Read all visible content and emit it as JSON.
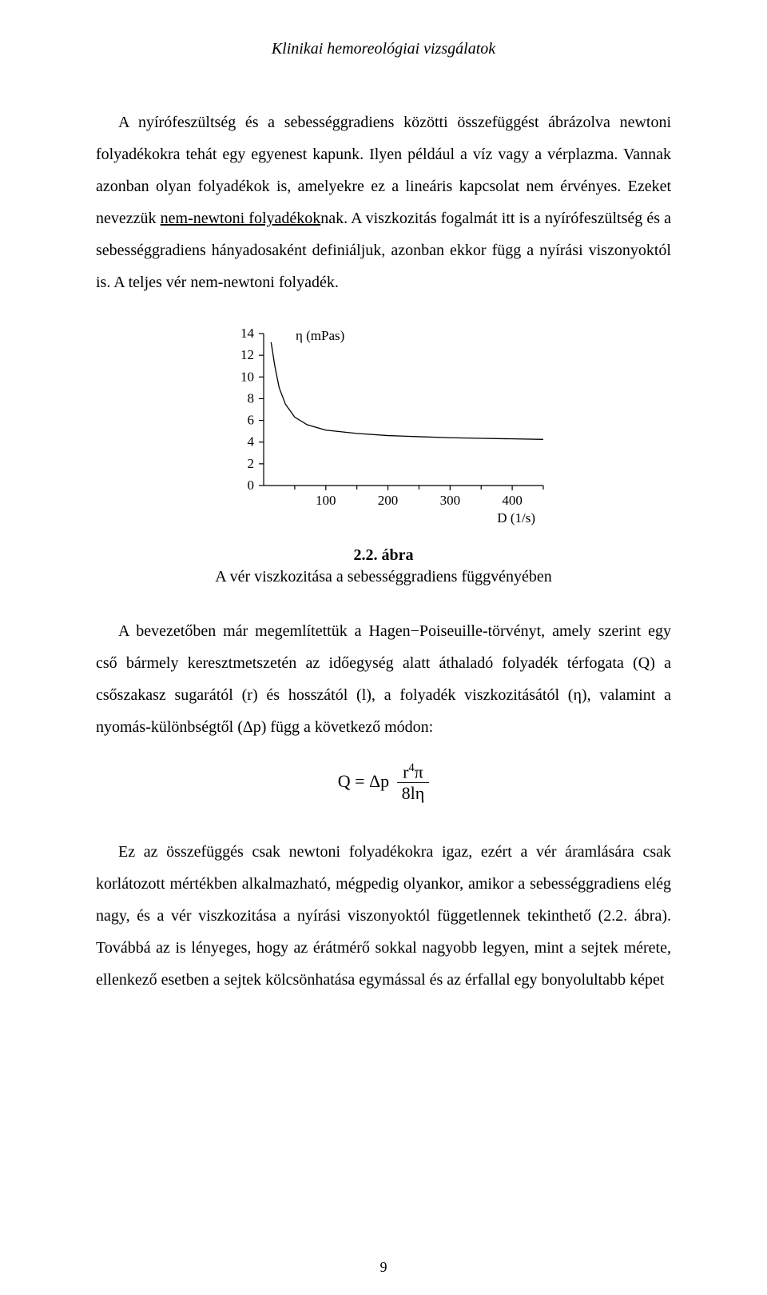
{
  "header": {
    "title": "Klinikai hemoreológiai vizsgálatok"
  },
  "paragraphs": {
    "p1_a": "A nyírófeszültség és a sebességgradiens közötti összefüggést ábrázolva newtoni folyadékokra tehát egy egyenest kapunk. Ilyen például a víz vagy a vérplazma. Vannak azonban olyan folyadékok is, amelyekre ez a lineáris kapcsolat nem érvényes. Ezeket nevezzük ",
    "p1_u": "nem-newtoni folyadékok",
    "p1_b": "nak. A viszkozitás fogalmát itt is a nyírófeszültség és a sebességgradiens hányadosaként definiáljuk, azonban ekkor függ a nyírási viszonyoktól is. A teljes vér nem-newtoni folyadék.",
    "p2": "A bevezetőben már megemlítettük a Hagen−Poiseuille-törvényt, amely szerint egy cső bármely keresztmetszetén az időegység alatt áthaladó folyadék térfogata (Q) a csőszakasz sugarától (r) és hosszától (l), a folyadék viszkozitásától (η), valamint a nyomás-különbségtől (Δp) függ a következő módon:",
    "p3": "Ez az összefüggés csak newtoni folyadékokra igaz, ezért a vér áramlására csak korlátozott mértékben alkalmazható, mégpedig olyankor, amikor a sebességgradiens elég nagy, és a vér viszkozitása a nyírási viszonyoktól függetlennek tekinthető (2.2. ábra). Továbbá az is lényeges, hogy az érátmérő sokkal nagyobb legyen, mint a sejtek mérete, ellenkező esetben a sejtek kölcsönhatása egymással és az érfallal egy bonyolultabb képet"
  },
  "figure": {
    "label": "2.2. ábra",
    "caption": "A vér viszkozitása a sebességgradiens függvényében"
  },
  "equation": {
    "lhs": "Q = Δp",
    "num_a": "r",
    "num_sup": "4",
    "num_b": "π",
    "den": "8lη"
  },
  "chart": {
    "type": "line",
    "y_label": "η (mPas)",
    "x_label": "D (1/s)",
    "x_ticks": [
      "100",
      "200",
      "300",
      "400"
    ],
    "y_ticks": [
      "0",
      "2",
      "4",
      "6",
      "8",
      "10",
      "12",
      "14"
    ],
    "ylim": [
      0,
      14
    ],
    "xlim": [
      0,
      450
    ],
    "axis_color": "#000000",
    "line_color": "#000000",
    "background_color": "#ffffff",
    "tick_fontsize": 17,
    "label_fontsize": 17,
    "line_width": 1.3,
    "axis_width": 1.2,
    "series": [
      {
        "x": 12,
        "y": 13.2
      },
      {
        "x": 18,
        "y": 11.0
      },
      {
        "x": 25,
        "y": 9.0
      },
      {
        "x": 35,
        "y": 7.5
      },
      {
        "x": 50,
        "y": 6.3
      },
      {
        "x": 70,
        "y": 5.6
      },
      {
        "x": 100,
        "y": 5.1
      },
      {
        "x": 150,
        "y": 4.8
      },
      {
        "x": 200,
        "y": 4.6
      },
      {
        "x": 250,
        "y": 4.5
      },
      {
        "x": 300,
        "y": 4.4
      },
      {
        "x": 350,
        "y": 4.35
      },
      {
        "x": 400,
        "y": 4.3
      },
      {
        "x": 450,
        "y": 4.25
      }
    ]
  },
  "page_number": "9"
}
